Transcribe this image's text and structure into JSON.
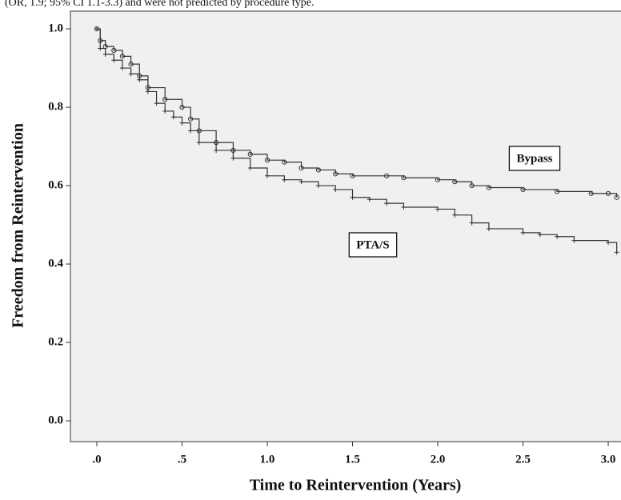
{
  "chart_data": {
    "type": "line",
    "subtitle": "(OR, 1.9; 95% CI 1.1-3.3) and were not predicted by procedure type.",
    "x_label": "Time to Reintervention (Years)",
    "y_label": "Freedom from Reintervention",
    "xlim": [
      -0.155,
      3.075
    ],
    "ylim": [
      -0.053,
      1.045
    ],
    "xticks": [
      {
        "value": 0,
        "label": ".0"
      },
      {
        "value": 0.5,
        "label": ".5"
      },
      {
        "value": 1,
        "label": "1.0"
      },
      {
        "value": 1.5,
        "label": "1.5"
      },
      {
        "value": 2,
        "label": "2.0"
      },
      {
        "value": 2.5,
        "label": "2.5"
      },
      {
        "value": 3,
        "label": "3.0"
      }
    ],
    "yticks": [
      {
        "value": 0,
        "label": "0.0"
      },
      0.2,
      0.4,
      0.6,
      0.8,
      {
        "value": 1,
        "label": "1.0"
      }
    ],
    "step": true,
    "annotations": [
      "Bypass",
      "PTA/S"
    ],
    "series": [
      {
        "name": "Bypass",
        "color": "#333333",
        "marker": "circle",
        "x": [
          0,
          0.02,
          0.05,
          0.1,
          0.15,
          0.2,
          0.25,
          0.3,
          0.4,
          0.5,
          0.55,
          0.6,
          0.7,
          0.8,
          0.9,
          1.0,
          1.1,
          1.2,
          1.3,
          1.4,
          1.5,
          1.7,
          1.8,
          2.0,
          2.1,
          2.2,
          2.3,
          2.5,
          2.7,
          2.9,
          3.0,
          3.05
        ],
        "values": [
          1.0,
          0.97,
          0.955,
          0.945,
          0.93,
          0.91,
          0.88,
          0.85,
          0.82,
          0.8,
          0.77,
          0.74,
          0.71,
          0.69,
          0.68,
          0.665,
          0.66,
          0.645,
          0.64,
          0.63,
          0.625,
          0.625,
          0.62,
          0.615,
          0.61,
          0.6,
          0.595,
          0.59,
          0.585,
          0.58,
          0.58,
          0.57
        ]
      },
      {
        "name": "PTA/S",
        "color": "#333333",
        "marker": "plus",
        "x": [
          0,
          0.02,
          0.05,
          0.1,
          0.15,
          0.2,
          0.25,
          0.3,
          0.35,
          0.4,
          0.45,
          0.5,
          0.55,
          0.6,
          0.7,
          0.8,
          0.9,
          1.0,
          1.1,
          1.2,
          1.3,
          1.4,
          1.5,
          1.6,
          1.7,
          1.8,
          2.0,
          2.1,
          2.2,
          2.3,
          2.5,
          2.6,
          2.7,
          2.8,
          3.0,
          3.05
        ],
        "values": [
          1.0,
          0.95,
          0.935,
          0.92,
          0.9,
          0.885,
          0.87,
          0.84,
          0.81,
          0.79,
          0.775,
          0.76,
          0.74,
          0.71,
          0.69,
          0.67,
          0.645,
          0.625,
          0.615,
          0.61,
          0.6,
          0.59,
          0.57,
          0.565,
          0.555,
          0.545,
          0.54,
          0.525,
          0.505,
          0.49,
          0.48,
          0.475,
          0.47,
          0.46,
          0.455,
          0.43
        ]
      }
    ]
  }
}
